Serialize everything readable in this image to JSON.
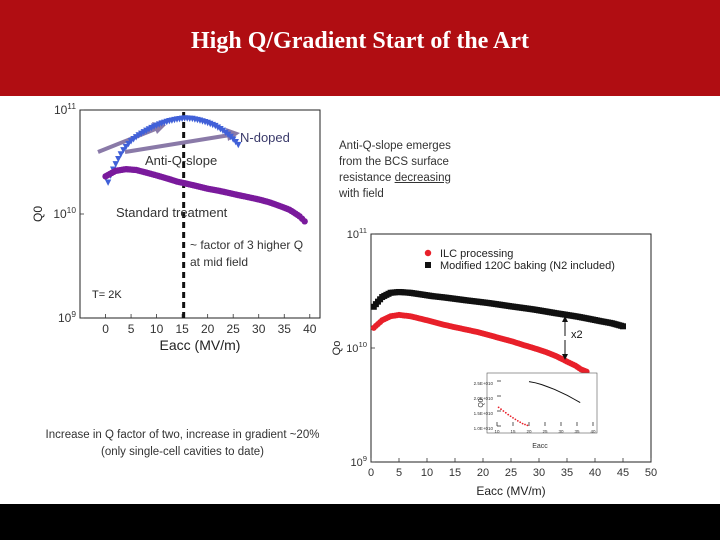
{
  "slide": {
    "title": "High Q/Gradient Start of the Art",
    "colors": {
      "title_bar": "#b00d12",
      "bottom_bar": "#000000"
    }
  },
  "annotations": {
    "n_doped": "N-doped",
    "anti_q_slope": "Anti-Q-slope",
    "standard_treatment": "Standard treatment",
    "factor_note_1": "~ factor of 3 higher Q",
    "factor_note_2": "at mid field",
    "temperature": "T= 2K",
    "anti_q_note": [
      "Anti-Q-slope emerges",
      "from the BCS surface",
      "resistance decreasing",
      "with field"
    ],
    "bottom_note_1": "Increase in Q factor of two, increase in gradient ~20%",
    "bottom_note_2": "(only single-cell cavities to date)"
  },
  "chart_data": [
    {
      "type": "scatter",
      "title": "",
      "xlabel": "Eacc (MV/m)",
      "ylabel": "Q0",
      "log_y": true,
      "xlim": [
        -5,
        42
      ],
      "ylim": [
        1000000000.0,
        100000000000.0
      ],
      "x_ticks": [
        "0",
        "5",
        "10",
        "15",
        "20",
        "25",
        "30",
        "35",
        "40"
      ],
      "y_ticks": [
        "10^9",
        "10^10",
        "10^11"
      ],
      "vertical_marker_x": 15.3,
      "series": [
        {
          "color": "#4060d8",
          "marker": "triangle-down",
          "x": [
            0.5,
            2,
            3.5,
            5,
            6.5,
            8,
            9.5,
            11,
            12.5,
            14,
            15.5,
            17,
            18.5,
            20,
            21.5,
            23,
            24.5,
            26
          ],
          "y": [
            20000000000.0,
            30000000000.0,
            41000000000.0,
            50000000000.0,
            57000000000.0,
            63000000000.0,
            69000000000.0,
            74000000000.0,
            78000000000.0,
            81000000000.0,
            83000000000.0,
            82000000000.0,
            79000000000.0,
            75000000000.0,
            70000000000.0,
            63000000000.0,
            55000000000.0,
            46000000000.0
          ]
        },
        {
          "color": "#7a1a9c",
          "marker": "circle",
          "x": [
            0,
            2,
            4,
            6,
            8,
            10,
            12,
            14,
            16,
            18,
            20,
            22,
            24,
            26,
            28,
            30,
            32,
            34,
            36,
            38,
            39
          ],
          "y": [
            23000000000.0,
            26000000000.0,
            27000000000.0,
            26500000000.0,
            25000000000.0,
            23500000000.0,
            22000000000.0,
            20500000000.0,
            19500000000.0,
            18500000000.0,
            17500000000.0,
            16800000000.0,
            16000000000.0,
            15200000000.0,
            14500000000.0,
            13800000000.0,
            13000000000.0,
            12000000000.0,
            11000000000.0,
            9500000000.0,
            8500000000.0
          ]
        }
      ]
    },
    {
      "type": "scatter",
      "title": "",
      "xlabel": "Eacc (MV/m)",
      "ylabel": "Qo",
      "log_y": true,
      "xlim": [
        0,
        50
      ],
      "ylim": [
        1000000000.0,
        100000000000.0
      ],
      "x_ticks": [
        "0",
        "5",
        "10",
        "15",
        "20",
        "25",
        "30",
        "35",
        "40",
        "45",
        "50"
      ],
      "y_ticks": [
        "10^9",
        "10^10",
        "10^11"
      ],
      "annotation": "x2",
      "series": [
        {
          "name": "ILC processing",
          "color": "#e8202a",
          "marker": "circle",
          "x": [
            0.5,
            2,
            3.5,
            5,
            7,
            9,
            11,
            13,
            15,
            17,
            19,
            21,
            23,
            25,
            27,
            29,
            31,
            33,
            35,
            36.5,
            37.5,
            38.5
          ],
          "y": [
            15000000000.0,
            17500000000.0,
            19000000000.0,
            19500000000.0,
            19000000000.0,
            18000000000.0,
            17000000000.0,
            16000000000.0,
            15200000000.0,
            14500000000.0,
            13800000000.0,
            13000000000.0,
            12200000000.0,
            11500000000.0,
            10700000000.0,
            10000000000.0,
            9300000000.0,
            8500000000.0,
            7600000000.0,
            7000000000.0,
            6500000000.0,
            6200000000.0
          ]
        },
        {
          "name": "Modified 120C baking (N2 included)",
          "color": "#111111",
          "marker": "square",
          "x": [
            0.5,
            2,
            3.5,
            5,
            7,
            9,
            11,
            13,
            15,
            17,
            19,
            21,
            23,
            25,
            27,
            29,
            31,
            33,
            35,
            37,
            39,
            41,
            43,
            45
          ],
          "y": [
            23000000000.0,
            28000000000.0,
            30500000000.0,
            31000000000.0,
            30500000000.0,
            29500000000.0,
            28500000000.0,
            27800000000.0,
            27000000000.0,
            26200000000.0,
            25500000000.0,
            24800000000.0,
            24000000000.0,
            23200000000.0,
            22500000000.0,
            21800000000.0,
            21000000000.0,
            20200000000.0,
            19500000000.0,
            18800000000.0,
            18000000000.0,
            17200000000.0,
            16500000000.0,
            15500000000.0
          ]
        }
      ]
    },
    {
      "type": "scatter",
      "title": "",
      "xlabel": "Eacc",
      "ylabel": "Q0",
      "log_y": false,
      "xlim": [
        10,
        40
      ],
      "ylim": [
        10000000000.0,
        26000000000.0
      ],
      "x_ticks": [
        "10",
        "15",
        "20",
        "25",
        "30",
        "35",
        "40"
      ],
      "y_ticks": [
        "1.0E+010",
        "1.5E+010",
        "2.0E+010",
        "2.5E+010"
      ],
      "series": [
        {
          "color": "#111111",
          "marker": "line",
          "x": [
            20,
            22,
            24,
            26,
            28,
            30,
            32,
            34,
            36
          ],
          "y": [
            24800000000.0,
            24400000000.0,
            23800000000.0,
            23000000000.0,
            22200000000.0,
            21200000000.0,
            20200000000.0,
            19000000000.0,
            17800000000.0
          ]
        },
        {
          "color": "#e8202a",
          "marker": "dots",
          "x": [
            10.5,
            12,
            13.5,
            15,
            16.5,
            18,
            19.5
          ],
          "y": [
            16200000000.0,
            15000000000.0,
            13800000000.0,
            12700000000.0,
            11700000000.0,
            10800000000.0,
            10200000000.0
          ]
        }
      ]
    }
  ]
}
